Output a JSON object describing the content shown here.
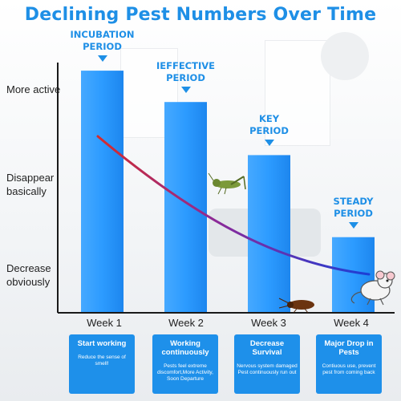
{
  "title": "Declining Pest Numbers Over Time",
  "y_axis_labels": {
    "top": "More active",
    "middle": "Disappear basically",
    "bottom": "Decrease obviously"
  },
  "chart_data": {
    "type": "bar",
    "title": "Declining Pest Numbers Over Time",
    "categories": [
      "Week 1",
      "Week 2",
      "Week 3",
      "Week 4"
    ],
    "period_labels": [
      "INCUBATION PERIOD",
      "IEFFECTIVE PERIOD",
      "KEY PERIOD",
      "STEADY PERIOD"
    ],
    "values": [
      100,
      87,
      65,
      31
    ],
    "ylim": [
      0,
      110
    ],
    "trend_line": {
      "direction": "decreasing",
      "colors": [
        "#d62b2b",
        "#1b3fd6"
      ]
    },
    "bar_color": "#2c9bff",
    "grid": false
  },
  "cards": [
    {
      "title": "Start working",
      "desc": "Reduce the sense of smell!"
    },
    {
      "title": "Working continuously",
      "desc": "Pests feel extreme discomfort,More Activity, Soon Departure"
    },
    {
      "title": "Decrease Survival",
      "desc": "Nervous system damaged Pest continuously run out"
    },
    {
      "title": "Major Drop in Pests",
      "desc": "Contiuous use, prevent pest from coming back"
    }
  ],
  "colors": {
    "accent": "#1e8fe6",
    "card": "#1e90ea",
    "axis": "#1a1a1a"
  },
  "icons": [
    "grasshopper-icon",
    "cockroach-icon",
    "mouse-icon"
  ]
}
